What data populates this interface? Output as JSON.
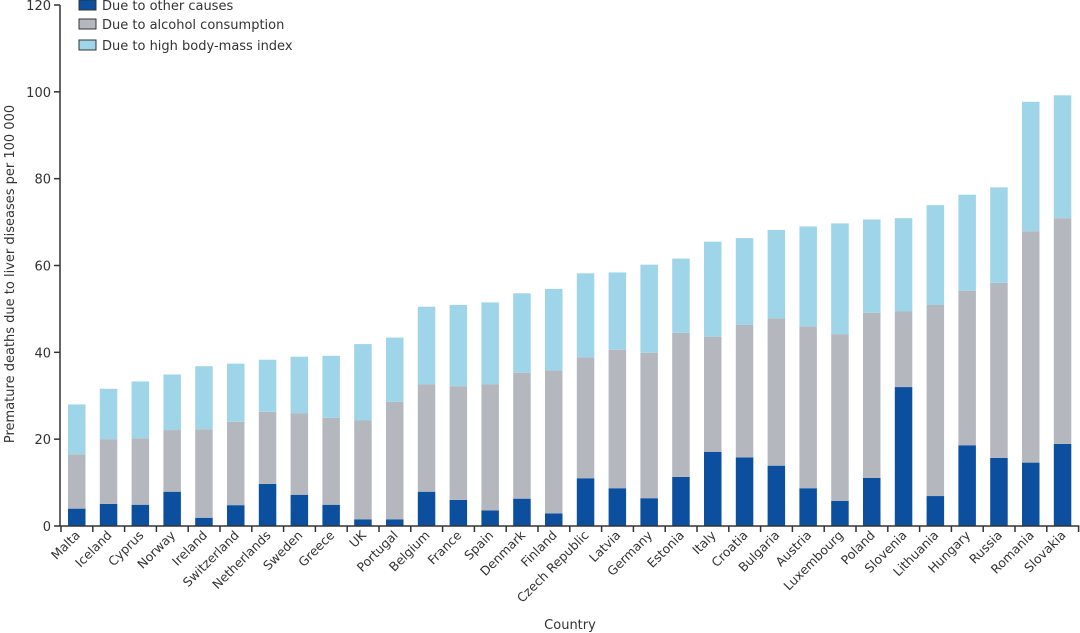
{
  "chart_data": {
    "type": "bar",
    "stacked": true,
    "title": "",
    "xlabel": "Country",
    "ylabel": "Premature deaths due to liver diseases per 100 000",
    "ylim": [
      0,
      120
    ],
    "yticks": [
      0,
      20,
      40,
      60,
      80,
      100,
      120
    ],
    "grid": false,
    "legend_position": "top-left",
    "categories": [
      "Malta",
      "Iceland",
      "Cyprus",
      "Norway",
      "Ireland",
      "Switzerland",
      "Netherlands",
      "Sweden",
      "Greece",
      "UK",
      "Portugal",
      "Belgium",
      "France",
      "Spain",
      "Denmark",
      "Finland",
      "Czech Republic",
      "Latvia",
      "Germany",
      "Estonia",
      "Italy",
      "Croatia",
      "Bulgaria",
      "Austria",
      "Luxembourg",
      "Poland",
      "Slovenia",
      "Lithuania",
      "Hungary",
      "Russia",
      "Romania",
      "Slovakia"
    ],
    "series": [
      {
        "name": "Due to other causes",
        "color": "#0b4f9e",
        "values": [
          4.0,
          5.1,
          4.9,
          7.9,
          1.9,
          4.8,
          9.7,
          7.2,
          4.9,
          1.5,
          1.5,
          7.9,
          6.0,
          3.6,
          6.3,
          2.9,
          11.0,
          8.7,
          6.4,
          11.3,
          17.1,
          15.8,
          13.9,
          8.7,
          5.8,
          11.1,
          32.0,
          6.9,
          18.6,
          15.7,
          14.6,
          18.9
        ]
      },
      {
        "name": "Due to alcohol consumption",
        "color": "#b4b8be",
        "values": [
          12.5,
          14.9,
          15.3,
          14.2,
          20.4,
          19.2,
          16.6,
          18.8,
          20.0,
          22.8,
          27.1,
          24.7,
          26.2,
          29.0,
          29.0,
          32.9,
          27.8,
          31.9,
          33.5,
          33.2,
          26.5,
          30.5,
          33.9,
          37.3,
          38.4,
          38.0,
          17.4,
          44.0,
          35.6,
          40.3,
          53.3,
          52.0
        ]
      },
      {
        "name": "Due to high body-mass index",
        "color": "#9fd5e8",
        "values": [
          11.5,
          11.6,
          13.1,
          12.8,
          14.5,
          13.4,
          12.0,
          13.0,
          14.3,
          17.6,
          14.8,
          17.9,
          18.7,
          18.9,
          18.3,
          18.8,
          19.4,
          17.8,
          20.3,
          17.1,
          21.9,
          20.0,
          20.4,
          23.0,
          25.5,
          21.5,
          21.5,
          23.0,
          22.1,
          22.0,
          29.8,
          28.3
        ]
      }
    ]
  }
}
